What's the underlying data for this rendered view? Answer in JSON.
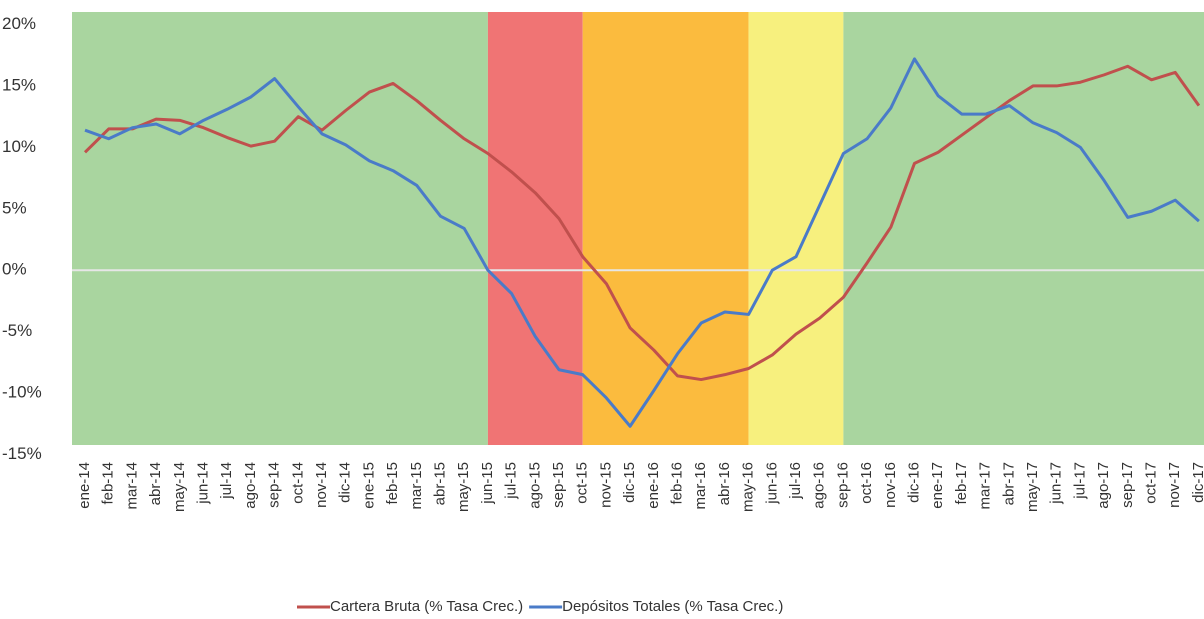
{
  "chart_data": {
    "type": "line",
    "categories": [
      "ene-14",
      "feb-14",
      "mar-14",
      "abr-14",
      "may-14",
      "jun-14",
      "jul-14",
      "ago-14",
      "sep-14",
      "oct-14",
      "nov-14",
      "dic-14",
      "ene-15",
      "feb-15",
      "mar-15",
      "abr-15",
      "may-15",
      "jun-15",
      "jul-15",
      "ago-15",
      "sep-15",
      "oct-15",
      "nov-15",
      "dic-15",
      "ene-16",
      "feb-16",
      "mar-16",
      "abr-16",
      "may-16",
      "jun-16",
      "jul-16",
      "ago-16",
      "sep-16",
      "oct-16",
      "nov-16",
      "dic-16",
      "ene-17",
      "feb-17",
      "mar-17",
      "abr-17",
      "may-17",
      "jun-17",
      "jul-17",
      "ago-17",
      "sep-17",
      "oct-17",
      "nov-17",
      "dic-17"
    ],
    "series": [
      {
        "name": "Cartera Bruta (% Tasa Crec.)",
        "color": "#c0504d",
        "values": [
          9.6,
          11.5,
          11.5,
          12.3,
          12.2,
          11.6,
          10.8,
          10.1,
          10.5,
          12.5,
          11.4,
          13.0,
          14.5,
          15.2,
          13.8,
          12.2,
          10.7,
          9.5,
          8.0,
          6.3,
          4.2,
          1.1,
          -1.1,
          -4.7,
          -6.5,
          -8.6,
          -8.9,
          -8.5,
          -8.0,
          -6.9,
          -5.2,
          -3.9,
          -2.2,
          0.6,
          3.5,
          8.7,
          9.6,
          11.0,
          12.4,
          13.8,
          15.0,
          15.0,
          15.3,
          15.9,
          16.6,
          15.5,
          16.1,
          13.4
        ]
      },
      {
        "name": "Depósitos Totales (% Tasa Crec.)",
        "color": "#4a7bc8",
        "values": [
          11.4,
          10.7,
          11.6,
          11.9,
          11.1,
          12.2,
          13.1,
          14.1,
          15.6,
          13.3,
          11.1,
          10.2,
          8.9,
          8.1,
          6.9,
          4.4,
          3.4,
          0,
          -1.9,
          -5.4,
          -8.1,
          -8.5,
          -10.4,
          -12.7,
          -9.8,
          -6.8,
          -4.3,
          -3.4,
          -3.6,
          0,
          1.1,
          5.3,
          9.5,
          10.7,
          13.2,
          17.2,
          14.2,
          12.7,
          12.7,
          13.4,
          12.0,
          11.2,
          10.0,
          7.3,
          4.3,
          4.8,
          5.7,
          4.0
        ]
      }
    ],
    "bands": [
      {
        "start": "ene-14",
        "color": "#a9d59f"
      },
      {
        "start": "jun-15",
        "color": "#f07474"
      },
      {
        "start": "oct-15",
        "color": "#fbbb3e"
      },
      {
        "start": "may-16",
        "color": "#f7f07e"
      },
      {
        "start": "sep-16",
        "color": "#a9d59f"
      }
    ],
    "ylim": [
      -15,
      20
    ],
    "yticks": [
      {
        "value": -15,
        "label": "-15%"
      },
      {
        "value": -10,
        "label": "-10%"
      },
      {
        "value": -5,
        "label": "-5%"
      },
      {
        "value": 0,
        "label": "0%"
      },
      {
        "value": 5,
        "label": "5%"
      },
      {
        "value": 10,
        "label": "10%"
      },
      {
        "value": 15,
        "label": "15%"
      },
      {
        "value": 20,
        "label": "20%"
      }
    ],
    "legend": "bottom"
  }
}
